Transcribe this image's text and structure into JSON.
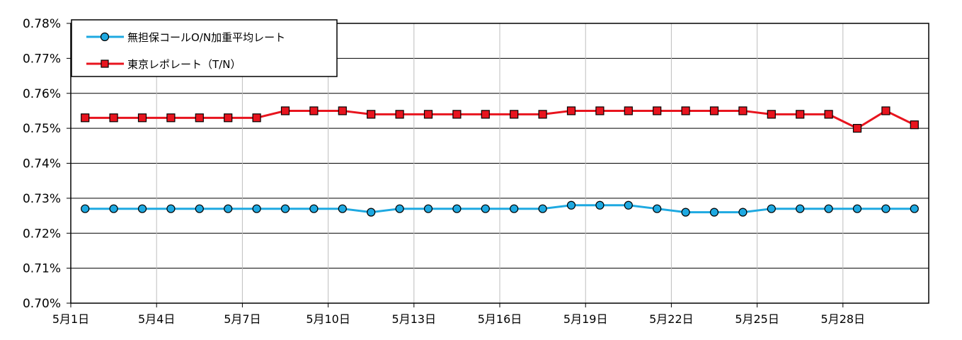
{
  "chart_data": {
    "type": "line",
    "title": "",
    "xlabel": "",
    "ylabel": "",
    "ylim": [
      0.7,
      0.78
    ],
    "y_tick_labels": [
      "0.78%",
      "0.77%",
      "0.76%",
      "0.75%",
      "0.74%",
      "0.73%",
      "0.72%",
      "0.71%",
      "0.70%"
    ],
    "x_tick_labels": [
      "5月1日",
      "5月4日",
      "5月7日",
      "5月10日",
      "5月13日",
      "5月16日",
      "5月19日",
      "5月22日",
      "5月25日",
      "5月28日"
    ],
    "grid": true,
    "legend_position": "top-left",
    "x": [
      "5月1日",
      "5月2日",
      "5月3日",
      "5月4日",
      "5月5日",
      "5月6日",
      "5月7日",
      "5月8日",
      "5月9日",
      "5月10日",
      "5月11日",
      "5月12日",
      "5月13日",
      "5月14日",
      "5月15日",
      "5月16日",
      "5月17日",
      "5月18日",
      "5月19日",
      "5月20日",
      "5月21日",
      "5月22日",
      "5月23日",
      "5月24日",
      "5月25日",
      "5月26日",
      "5月27日",
      "5月28日",
      "5月29日",
      "5月30日"
    ],
    "series": [
      {
        "name": "無担保コールO/N加重平均レート",
        "color": "#1ea9e1",
        "marker": "circle",
        "values": [
          0.727,
          0.727,
          0.727,
          0.727,
          0.727,
          0.727,
          0.727,
          0.727,
          0.727,
          0.727,
          0.726,
          0.727,
          0.727,
          0.727,
          0.727,
          0.727,
          0.727,
          0.728,
          0.728,
          0.728,
          0.727,
          0.726,
          0.726,
          0.726,
          0.727,
          0.727,
          0.727,
          0.727,
          0.727,
          0.727
        ]
      },
      {
        "name": "東京レポレート（T/N）",
        "color": "#e8141e",
        "marker": "square",
        "values": [
          0.753,
          0.753,
          0.753,
          0.753,
          0.753,
          0.753,
          0.753,
          0.755,
          0.755,
          0.755,
          0.754,
          0.754,
          0.754,
          0.754,
          0.754,
          0.754,
          0.754,
          0.755,
          0.755,
          0.755,
          0.755,
          0.755,
          0.755,
          0.755,
          0.754,
          0.754,
          0.754,
          0.75,
          0.755,
          0.751
        ]
      }
    ]
  }
}
